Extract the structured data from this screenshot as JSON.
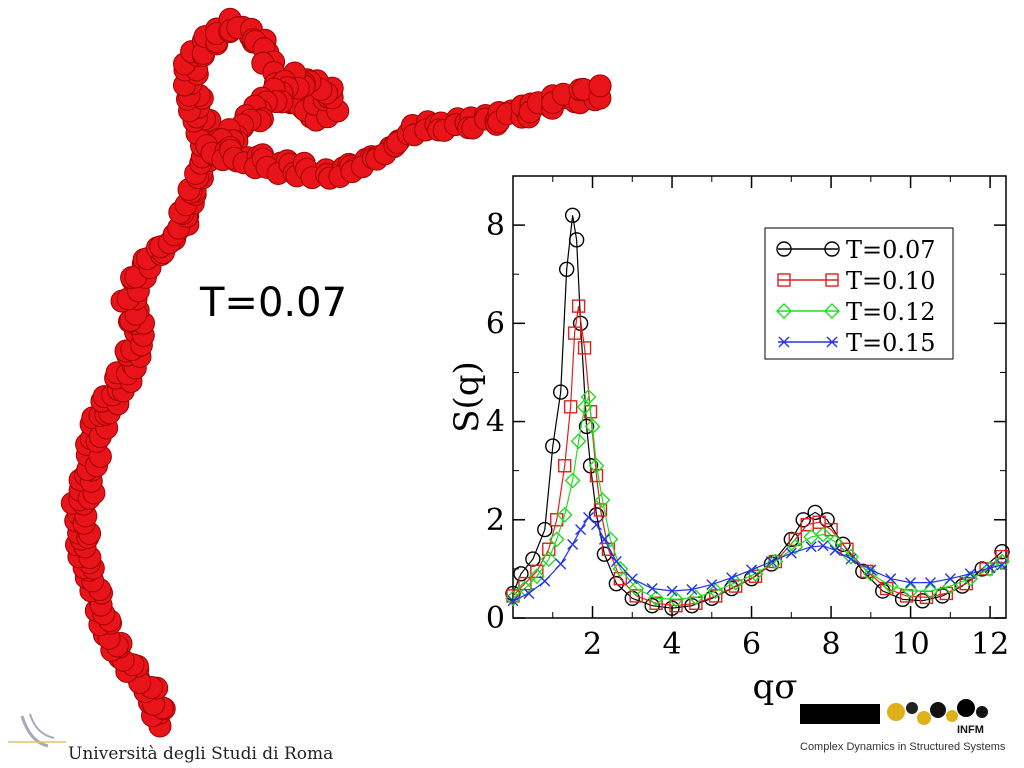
{
  "overlay_label": "T=0.07",
  "footer": {
    "university": "Università degli Studi di Roma",
    "logo_subtitle": "Complex Dynamics in Structured Systems",
    "logo_text": "INFM"
  },
  "colors": {
    "cluster": "#e8141a",
    "t007": "#000000",
    "t010": "#e0201e",
    "t012": "#22dd22",
    "t015": "#2233ee"
  },
  "chart_data": {
    "type": "line",
    "xlabel": "qσ",
    "ylabel": "S(q)",
    "xlim": [
      0,
      12.4
    ],
    "ylim": [
      0,
      9
    ],
    "xticks": [
      2,
      4,
      6,
      8,
      10,
      12
    ],
    "yticks": [
      0,
      2,
      4,
      6,
      8
    ],
    "legend_position": "top-right",
    "series": [
      {
        "name": "T=0.07",
        "marker": "circle",
        "color": "#000000",
        "points": [
          [
            0.0,
            0.5
          ],
          [
            0.2,
            0.9
          ],
          [
            0.5,
            1.2
          ],
          [
            0.8,
            1.8
          ],
          [
            1.0,
            3.5
          ],
          [
            1.2,
            4.6
          ],
          [
            1.35,
            7.1
          ],
          [
            1.5,
            8.2
          ],
          [
            1.6,
            7.7
          ],
          [
            1.7,
            6.0
          ],
          [
            1.85,
            3.9
          ],
          [
            1.95,
            3.1
          ],
          [
            2.1,
            2.1
          ],
          [
            2.3,
            1.3
          ],
          [
            2.6,
            0.7
          ],
          [
            3.0,
            0.4
          ],
          [
            3.5,
            0.25
          ],
          [
            4.0,
            0.2
          ],
          [
            4.5,
            0.25
          ],
          [
            5.0,
            0.4
          ],
          [
            5.5,
            0.6
          ],
          [
            6.0,
            0.8
          ],
          [
            6.5,
            1.1
          ],
          [
            7.0,
            1.6
          ],
          [
            7.3,
            2.0
          ],
          [
            7.6,
            2.15
          ],
          [
            7.9,
            2.0
          ],
          [
            8.3,
            1.5
          ],
          [
            8.8,
            0.95
          ],
          [
            9.3,
            0.55
          ],
          [
            9.8,
            0.38
          ],
          [
            10.3,
            0.35
          ],
          [
            10.8,
            0.45
          ],
          [
            11.3,
            0.65
          ],
          [
            11.8,
            1.0
          ],
          [
            12.3,
            1.35
          ]
        ]
      },
      {
        "name": "T=0.10",
        "marker": "square",
        "color": "#e0201e",
        "points": [
          [
            0.0,
            0.45
          ],
          [
            0.3,
            0.7
          ],
          [
            0.6,
            0.95
          ],
          [
            0.9,
            1.4
          ],
          [
            1.1,
            2.0
          ],
          [
            1.3,
            3.1
          ],
          [
            1.45,
            4.3
          ],
          [
            1.55,
            5.8
          ],
          [
            1.65,
            6.35
          ],
          [
            1.8,
            5.5
          ],
          [
            1.95,
            4.2
          ],
          [
            2.1,
            2.9
          ],
          [
            2.2,
            2.2
          ],
          [
            2.4,
            1.4
          ],
          [
            2.7,
            0.8
          ],
          [
            3.1,
            0.45
          ],
          [
            3.6,
            0.3
          ],
          [
            4.1,
            0.25
          ],
          [
            4.6,
            0.3
          ],
          [
            5.1,
            0.45
          ],
          [
            5.6,
            0.65
          ],
          [
            6.1,
            0.85
          ],
          [
            6.6,
            1.15
          ],
          [
            7.1,
            1.6
          ],
          [
            7.4,
            1.9
          ],
          [
            7.7,
            1.95
          ],
          [
            8.0,
            1.8
          ],
          [
            8.4,
            1.4
          ],
          [
            8.9,
            0.95
          ],
          [
            9.4,
            0.6
          ],
          [
            9.9,
            0.45
          ],
          [
            10.4,
            0.42
          ],
          [
            10.9,
            0.5
          ],
          [
            11.4,
            0.7
          ],
          [
            11.9,
            1.0
          ],
          [
            12.3,
            1.25
          ]
        ]
      },
      {
        "name": "T=0.12",
        "marker": "diamond",
        "color": "#22dd22",
        "points": [
          [
            0.0,
            0.4
          ],
          [
            0.3,
            0.6
          ],
          [
            0.6,
            0.85
          ],
          [
            0.9,
            1.2
          ],
          [
            1.1,
            1.6
          ],
          [
            1.3,
            2.1
          ],
          [
            1.5,
            2.8
          ],
          [
            1.65,
            3.6
          ],
          [
            1.8,
            4.3
          ],
          [
            1.9,
            4.5
          ],
          [
            2.0,
            3.9
          ],
          [
            2.1,
            3.1
          ],
          [
            2.25,
            2.4
          ],
          [
            2.45,
            1.6
          ],
          [
            2.7,
            1.0
          ],
          [
            3.1,
            0.6
          ],
          [
            3.6,
            0.4
          ],
          [
            4.1,
            0.38
          ],
          [
            4.6,
            0.42
          ],
          [
            5.1,
            0.55
          ],
          [
            5.6,
            0.72
          ],
          [
            6.1,
            0.9
          ],
          [
            6.6,
            1.15
          ],
          [
            7.1,
            1.45
          ],
          [
            7.5,
            1.65
          ],
          [
            7.8,
            1.7
          ],
          [
            8.1,
            1.55
          ],
          [
            8.5,
            1.25
          ],
          [
            9.0,
            0.9
          ],
          [
            9.5,
            0.65
          ],
          [
            10.0,
            0.55
          ],
          [
            10.5,
            0.55
          ],
          [
            11.0,
            0.65
          ],
          [
            11.5,
            0.8
          ],
          [
            12.0,
            1.0
          ],
          [
            12.3,
            1.15
          ]
        ]
      },
      {
        "name": "T=0.15",
        "marker": "x",
        "color": "#2233ee",
        "points": [
          [
            0.0,
            0.35
          ],
          [
            0.4,
            0.5
          ],
          [
            0.8,
            0.75
          ],
          [
            1.2,
            1.1
          ],
          [
            1.5,
            1.5
          ],
          [
            1.7,
            1.8
          ],
          [
            1.9,
            2.05
          ],
          [
            2.1,
            1.9
          ],
          [
            2.3,
            1.6
          ],
          [
            2.6,
            1.15
          ],
          [
            3.0,
            0.8
          ],
          [
            3.5,
            0.6
          ],
          [
            4.0,
            0.55
          ],
          [
            4.5,
            0.58
          ],
          [
            5.0,
            0.68
          ],
          [
            5.5,
            0.82
          ],
          [
            6.0,
            0.98
          ],
          [
            6.5,
            1.15
          ],
          [
            7.0,
            1.32
          ],
          [
            7.5,
            1.45
          ],
          [
            7.8,
            1.47
          ],
          [
            8.1,
            1.38
          ],
          [
            8.5,
            1.2
          ],
          [
            9.0,
            0.98
          ],
          [
            9.5,
            0.8
          ],
          [
            10.0,
            0.72
          ],
          [
            10.5,
            0.72
          ],
          [
            11.0,
            0.8
          ],
          [
            11.5,
            0.9
          ],
          [
            12.0,
            1.02
          ],
          [
            12.3,
            1.08
          ]
        ]
      }
    ]
  }
}
